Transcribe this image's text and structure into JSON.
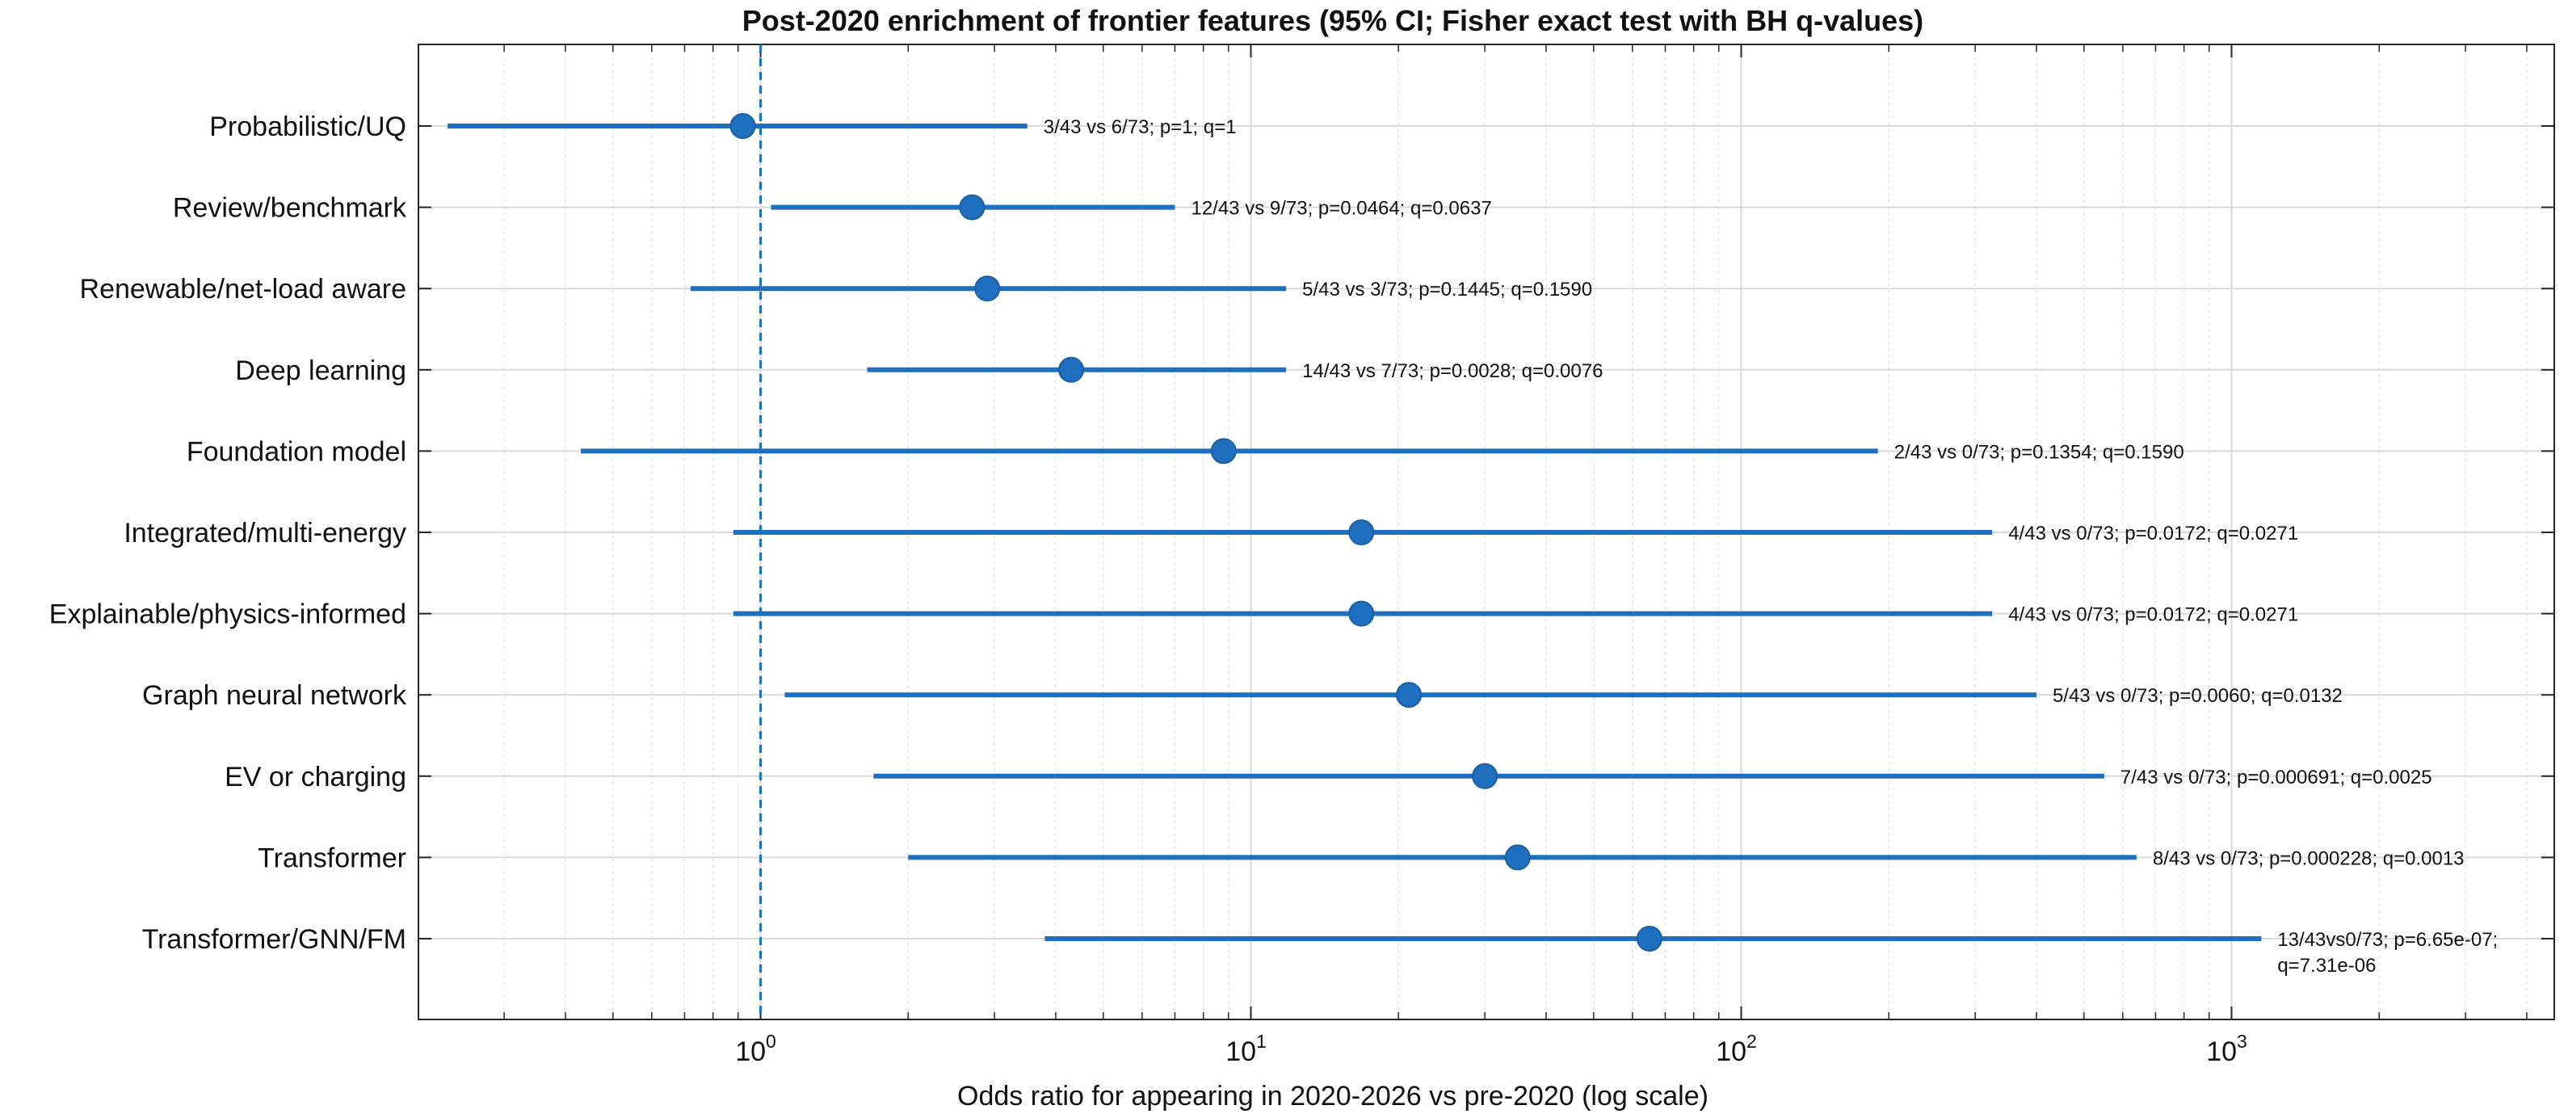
{
  "chart_data": {
    "type": "forest",
    "title": "Post-2020 enrichment of frontier features (95% CI; Fisher exact test with BH q-values)",
    "xlabel": "Odds ratio for appearing in 2020-2026 vs pre-2020 (log scale)",
    "ylabel": "",
    "x_scale": "log",
    "xlim": [
      0.2,
      4500
    ],
    "x_ticks": [
      {
        "value": 1,
        "base": "10",
        "exp": "0"
      },
      {
        "value": 10,
        "base": "10",
        "exp": "1"
      },
      {
        "value": 100,
        "base": "10",
        "exp": "2"
      },
      {
        "value": 1000,
        "base": "10",
        "exp": "3"
      }
    ],
    "reference_line": 1,
    "grid": true,
    "colors": {
      "series": "#1f6fbf",
      "reference": "#1f6fbf",
      "grid": "#d9d9d9"
    },
    "rows": [
      {
        "label": "Probabilistic/UQ",
        "or": 0.92,
        "ci_low": 0.23,
        "ci_high": 3.5,
        "annotation": [
          "3/43 vs 6/73; p=1; q=1"
        ]
      },
      {
        "label": "Review/benchmark",
        "or": 2.7,
        "ci_low": 1.05,
        "ci_high": 7.0,
        "annotation": [
          "12/43 vs 9/73; p=0.0464; q=0.0637"
        ]
      },
      {
        "label": "Renewable/net-load aware",
        "or": 2.9,
        "ci_low": 0.72,
        "ci_high": 11.8,
        "annotation": [
          "5/43 vs 3/73; p=0.1445; q=0.1590"
        ]
      },
      {
        "label": "Deep learning",
        "or": 4.3,
        "ci_low": 1.65,
        "ci_high": 11.8,
        "annotation": [
          "14/43 vs 7/73; p=0.0028; q=0.0076"
        ]
      },
      {
        "label": "Foundation model",
        "or": 8.8,
        "ci_low": 0.43,
        "ci_high": 190,
        "annotation": [
          "2/43 vs 0/73; p=0.1354; q=0.1590"
        ]
      },
      {
        "label": "Integrated/multi-energy",
        "or": 16.8,
        "ci_low": 0.88,
        "ci_high": 325,
        "annotation": [
          "4/43 vs 0/73; p=0.0172; q=0.0271"
        ]
      },
      {
        "label": "Explainable/physics-informed",
        "or": 16.8,
        "ci_low": 0.88,
        "ci_high": 325,
        "annotation": [
          "4/43 vs 0/73; p=0.0172; q=0.0271"
        ]
      },
      {
        "label": "Graph neural network",
        "or": 21,
        "ci_low": 1.12,
        "ci_high": 400,
        "annotation": [
          "5/43 vs 0/73; p=0.0060; q=0.0132"
        ]
      },
      {
        "label": "EV or charging",
        "or": 30,
        "ci_low": 1.7,
        "ci_high": 550,
        "annotation": [
          "7/43 vs 0/73; p=0.000691; q=0.0025"
        ]
      },
      {
        "label": "Transformer",
        "or": 35,
        "ci_low": 2.0,
        "ci_high": 640,
        "annotation": [
          "8/43 vs 0/73; p=0.000228; q=0.0013"
        ]
      },
      {
        "label": "Transformer/GNN/FM",
        "or": 65,
        "ci_low": 3.8,
        "ci_high": 1150,
        "annotation": [
          "13/43vs0/73; p=6.65e-07;",
          "q=7.31e-06"
        ]
      }
    ]
  }
}
